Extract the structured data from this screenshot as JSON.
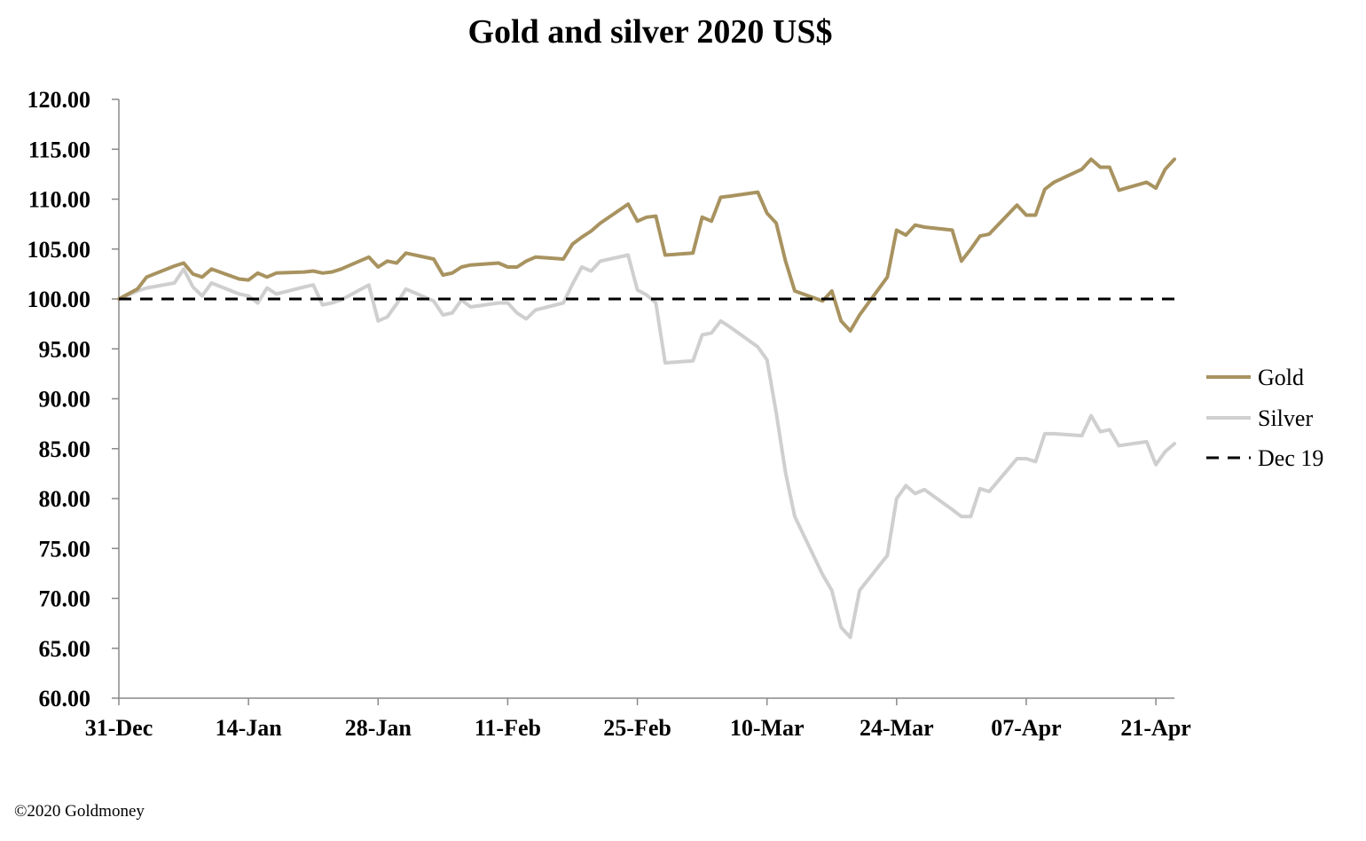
{
  "footer": {
    "credit": "©2020 Goldmoney"
  },
  "chart_data": {
    "type": "line",
    "title": "Gold and silver 2020  US$",
    "xlabel": "",
    "ylabel": "",
    "ylim": [
      60,
      120
    ],
    "y_ticks": [
      "60.00",
      "65.00",
      "70.00",
      "75.00",
      "80.00",
      "85.00",
      "90.00",
      "95.00",
      "100.00",
      "105.00",
      "110.00",
      "115.00",
      "120.00"
    ],
    "x_tick_labels": [
      "31-Dec",
      "14-Jan",
      "28-Jan",
      "11-Feb",
      "25-Feb",
      "10-Mar",
      "24-Mar",
      "07-Apr",
      "21-Apr"
    ],
    "x_tick_dates": [
      "2019-12-31",
      "2020-01-14",
      "2020-01-28",
      "2020-02-11",
      "2020-02-25",
      "2020-03-10",
      "2020-03-24",
      "2020-04-07",
      "2020-04-21"
    ],
    "xlim": [
      "2019-12-31",
      "2020-04-23"
    ],
    "grid": false,
    "legend_position": "right",
    "colors": {
      "gold": "#a89360",
      "silver": "#cfcfcf",
      "reference": "#000000"
    },
    "series": [
      {
        "name": "Gold",
        "color": "#a89360",
        "points": [
          [
            "2019-12-31",
            100.0
          ],
          [
            "2020-01-02",
            101.0
          ],
          [
            "2020-01-03",
            102.2
          ],
          [
            "2020-01-06",
            103.3
          ],
          [
            "2020-01-07",
            103.6
          ],
          [
            "2020-01-08",
            102.5
          ],
          [
            "2020-01-09",
            102.2
          ],
          [
            "2020-01-10",
            103.0
          ],
          [
            "2020-01-13",
            102.0
          ],
          [
            "2020-01-14",
            101.9
          ],
          [
            "2020-01-15",
            102.6
          ],
          [
            "2020-01-16",
            102.2
          ],
          [
            "2020-01-17",
            102.6
          ],
          [
            "2020-01-20",
            102.7
          ],
          [
            "2020-01-21",
            102.8
          ],
          [
            "2020-01-22",
            102.6
          ],
          [
            "2020-01-23",
            102.7
          ],
          [
            "2020-01-24",
            103.0
          ],
          [
            "2020-01-27",
            104.2
          ],
          [
            "2020-01-28",
            103.2
          ],
          [
            "2020-01-29",
            103.8
          ],
          [
            "2020-01-30",
            103.6
          ],
          [
            "2020-01-31",
            104.6
          ],
          [
            "2020-02-03",
            104.0
          ],
          [
            "2020-02-04",
            102.4
          ],
          [
            "2020-02-05",
            102.6
          ],
          [
            "2020-02-06",
            103.2
          ],
          [
            "2020-02-07",
            103.4
          ],
          [
            "2020-02-10",
            103.6
          ],
          [
            "2020-02-11",
            103.2
          ],
          [
            "2020-02-12",
            103.2
          ],
          [
            "2020-02-13",
            103.8
          ],
          [
            "2020-02-14",
            104.2
          ],
          [
            "2020-02-17",
            104.0
          ],
          [
            "2020-02-18",
            105.5
          ],
          [
            "2020-02-19",
            106.2
          ],
          [
            "2020-02-20",
            106.8
          ],
          [
            "2020-02-21",
            107.6
          ],
          [
            "2020-02-24",
            109.5
          ],
          [
            "2020-02-25",
            107.8
          ],
          [
            "2020-02-26",
            108.2
          ],
          [
            "2020-02-27",
            108.3
          ],
          [
            "2020-02-28",
            104.4
          ],
          [
            "2020-03-02",
            104.6
          ],
          [
            "2020-03-03",
            108.2
          ],
          [
            "2020-03-04",
            107.8
          ],
          [
            "2020-03-05",
            110.2
          ],
          [
            "2020-03-06",
            110.3
          ],
          [
            "2020-03-09",
            110.7
          ],
          [
            "2020-03-10",
            108.6
          ],
          [
            "2020-03-11",
            107.6
          ],
          [
            "2020-03-12",
            103.8
          ],
          [
            "2020-03-13",
            100.8
          ],
          [
            "2020-03-16",
            99.8
          ],
          [
            "2020-03-17",
            100.8
          ],
          [
            "2020-03-18",
            97.8
          ],
          [
            "2020-03-19",
            96.8
          ],
          [
            "2020-03-20",
            98.4
          ],
          [
            "2020-03-23",
            102.2
          ],
          [
            "2020-03-24",
            106.9
          ],
          [
            "2020-03-25",
            106.4
          ],
          [
            "2020-03-26",
            107.4
          ],
          [
            "2020-03-27",
            107.2
          ],
          [
            "2020-03-30",
            106.9
          ],
          [
            "2020-03-31",
            103.8
          ],
          [
            "2020-04-01",
            105.0
          ],
          [
            "2020-04-02",
            106.3
          ],
          [
            "2020-04-03",
            106.5
          ],
          [
            "2020-04-06",
            109.4
          ],
          [
            "2020-04-07",
            108.4
          ],
          [
            "2020-04-08",
            108.4
          ],
          [
            "2020-04-09",
            111.0
          ],
          [
            "2020-04-10",
            111.7
          ],
          [
            "2020-04-13",
            113.0
          ],
          [
            "2020-04-14",
            114.0
          ],
          [
            "2020-04-15",
            113.2
          ],
          [
            "2020-04-16",
            113.2
          ],
          [
            "2020-04-17",
            110.9
          ],
          [
            "2020-04-20",
            111.7
          ],
          [
            "2020-04-21",
            111.1
          ],
          [
            "2020-04-22",
            113.0
          ],
          [
            "2020-04-23",
            114.0
          ]
        ]
      },
      {
        "name": "Silver",
        "color": "#cfcfcf",
        "points": [
          [
            "2019-12-31",
            100.0
          ],
          [
            "2020-01-02",
            100.8
          ],
          [
            "2020-01-03",
            101.1
          ],
          [
            "2020-01-06",
            101.6
          ],
          [
            "2020-01-07",
            103.0
          ],
          [
            "2020-01-08",
            101.2
          ],
          [
            "2020-01-09",
            100.3
          ],
          [
            "2020-01-10",
            101.6
          ],
          [
            "2020-01-13",
            100.5
          ],
          [
            "2020-01-14",
            100.3
          ],
          [
            "2020-01-15",
            99.6
          ],
          [
            "2020-01-16",
            101.1
          ],
          [
            "2020-01-17",
            100.5
          ],
          [
            "2020-01-20",
            101.2
          ],
          [
            "2020-01-21",
            101.4
          ],
          [
            "2020-01-22",
            99.4
          ],
          [
            "2020-01-23",
            99.6
          ],
          [
            "2020-01-24",
            99.9
          ],
          [
            "2020-01-27",
            101.4
          ],
          [
            "2020-01-28",
            97.8
          ],
          [
            "2020-01-29",
            98.2
          ],
          [
            "2020-01-30",
            99.5
          ],
          [
            "2020-01-31",
            101.0
          ],
          [
            "2020-02-03",
            99.8
          ],
          [
            "2020-02-04",
            98.4
          ],
          [
            "2020-02-05",
            98.6
          ],
          [
            "2020-02-06",
            99.9
          ],
          [
            "2020-02-07",
            99.2
          ],
          [
            "2020-02-10",
            99.6
          ],
          [
            "2020-02-11",
            99.6
          ],
          [
            "2020-02-12",
            98.6
          ],
          [
            "2020-02-13",
            98.0
          ],
          [
            "2020-02-14",
            98.9
          ],
          [
            "2020-02-17",
            99.6
          ],
          [
            "2020-02-18",
            101.5
          ],
          [
            "2020-02-19",
            103.2
          ],
          [
            "2020-02-20",
            102.8
          ],
          [
            "2020-02-21",
            103.8
          ],
          [
            "2020-02-24",
            104.4
          ],
          [
            "2020-02-25",
            100.9
          ],
          [
            "2020-02-26",
            100.4
          ],
          [
            "2020-02-27",
            99.6
          ],
          [
            "2020-02-28",
            93.6
          ],
          [
            "2020-03-02",
            93.8
          ],
          [
            "2020-03-03",
            96.4
          ],
          [
            "2020-03-04",
            96.6
          ],
          [
            "2020-03-05",
            97.8
          ],
          [
            "2020-03-06",
            97.2
          ],
          [
            "2020-03-09",
            95.2
          ],
          [
            "2020-03-10",
            93.9
          ],
          [
            "2020-03-11",
            88.6
          ],
          [
            "2020-03-12",
            82.6
          ],
          [
            "2020-03-13",
            78.2
          ],
          [
            "2020-03-16",
            72.4
          ],
          [
            "2020-03-17",
            70.8
          ],
          [
            "2020-03-18",
            67.1
          ],
          [
            "2020-03-19",
            66.1
          ],
          [
            "2020-03-20",
            70.8
          ],
          [
            "2020-03-23",
            74.3
          ],
          [
            "2020-03-24",
            80.0
          ],
          [
            "2020-03-25",
            81.3
          ],
          [
            "2020-03-26",
            80.5
          ],
          [
            "2020-03-27",
            80.9
          ],
          [
            "2020-03-30",
            78.9
          ],
          [
            "2020-03-31",
            78.2
          ],
          [
            "2020-04-01",
            78.2
          ],
          [
            "2020-04-02",
            81.0
          ],
          [
            "2020-04-03",
            80.7
          ],
          [
            "2020-04-06",
            84.0
          ],
          [
            "2020-04-07",
            84.0
          ],
          [
            "2020-04-08",
            83.7
          ],
          [
            "2020-04-09",
            86.5
          ],
          [
            "2020-04-10",
            86.5
          ],
          [
            "2020-04-13",
            86.3
          ],
          [
            "2020-04-14",
            88.3
          ],
          [
            "2020-04-15",
            86.7
          ],
          [
            "2020-04-16",
            86.9
          ],
          [
            "2020-04-17",
            85.3
          ],
          [
            "2020-04-20",
            85.7
          ],
          [
            "2020-04-21",
            83.4
          ],
          [
            "2020-04-22",
            84.7
          ],
          [
            "2020-04-23",
            85.5
          ]
        ]
      },
      {
        "name": "Dec 19",
        "color": "#000000",
        "dashed": true,
        "points": [
          [
            "2019-12-31",
            100.0
          ],
          [
            "2020-04-23",
            100.0
          ]
        ]
      }
    ]
  }
}
